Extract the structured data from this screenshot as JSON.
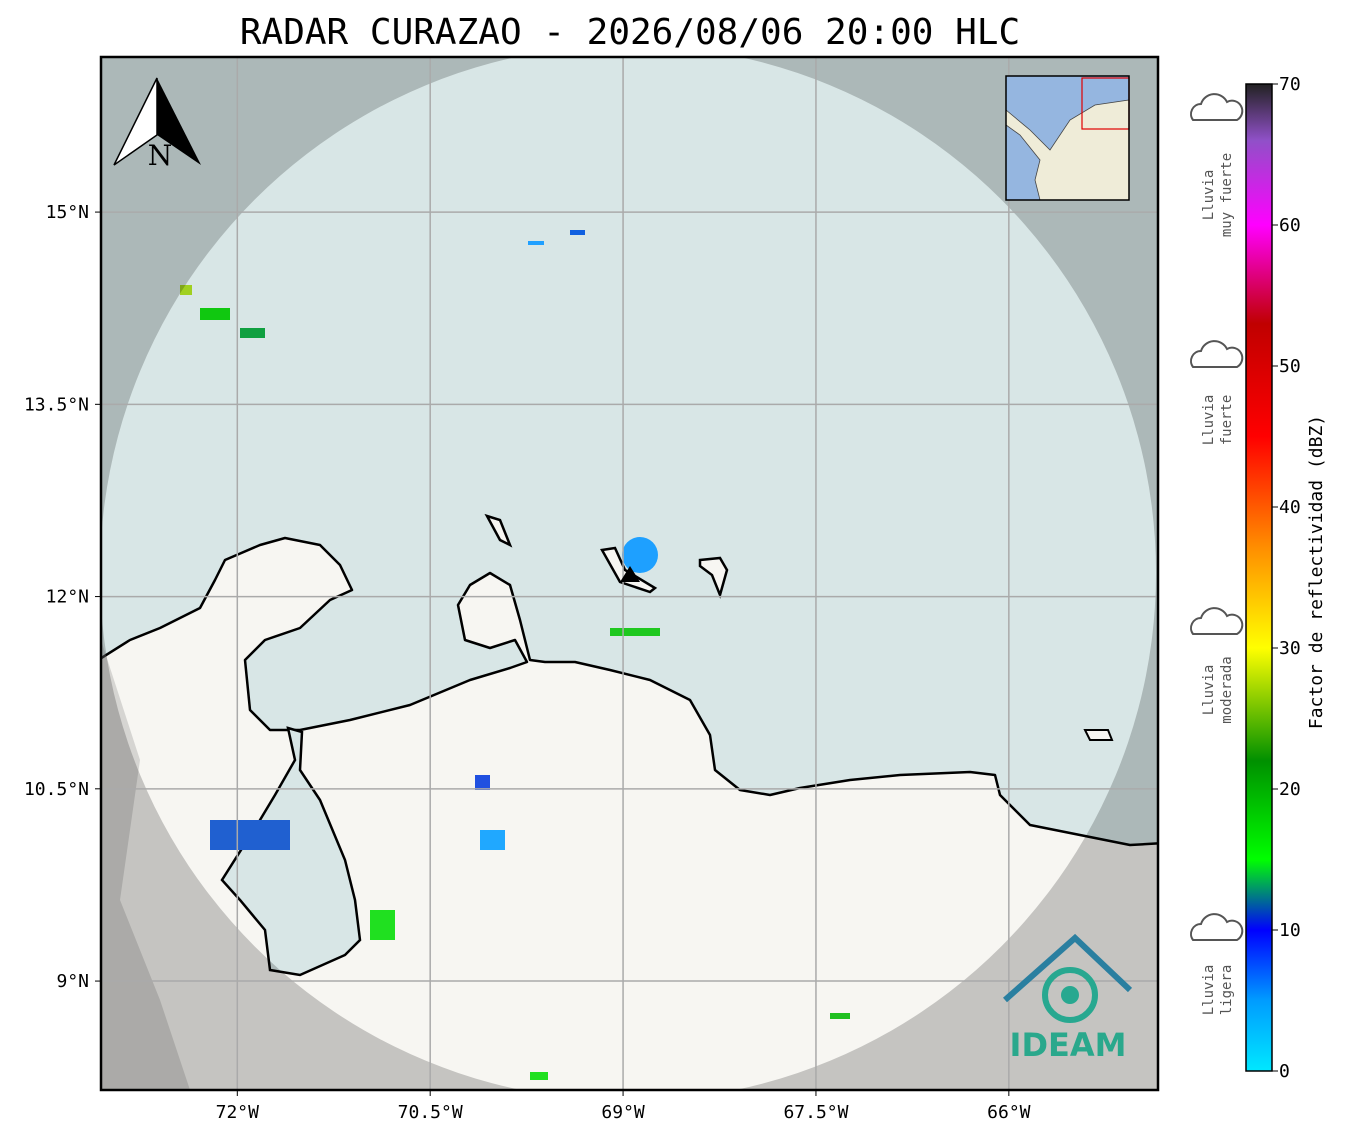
{
  "title": "RADAR CURAZAO - 2026/08/06 20:00 HLC",
  "map": {
    "lonlim": [
      -73.06,
      -64.84
    ],
    "latlim": [
      8.15,
      16.21
    ],
    "lonticks": [
      {
        "value": -72,
        "label": "72°W"
      },
      {
        "value": -70.5,
        "label": "70.5°W"
      },
      {
        "value": -69,
        "label": "69°W"
      },
      {
        "value": -67.5,
        "label": "67.5°W"
      },
      {
        "value": -66,
        "label": "66°W"
      }
    ],
    "latticks": [
      {
        "value": 15,
        "label": "15°N"
      },
      {
        "value": 13.5,
        "label": "13.5°N"
      },
      {
        "value": 12,
        "label": "12°N"
      },
      {
        "value": 10.5,
        "label": "10.5°N"
      },
      {
        "value": 9,
        "label": "9°N"
      }
    ],
    "grid": true,
    "north_label": "N",
    "logo": "IDEAM"
  },
  "colorbar": {
    "label": "Factor de reflectividad (dBZ)",
    "lim": [
      0,
      70
    ],
    "ticks": [
      0,
      10,
      20,
      30,
      40,
      50,
      60,
      70
    ],
    "stops": [
      {
        "value": 0,
        "color": "#00e8ff"
      },
      {
        "value": 5,
        "color": "#009cff"
      },
      {
        "value": 10,
        "color": "#0000ff"
      },
      {
        "value": 15,
        "color": "#00ff00"
      },
      {
        "value": 22,
        "color": "#009000"
      },
      {
        "value": 30,
        "color": "#ffff00"
      },
      {
        "value": 37,
        "color": "#ff9000"
      },
      {
        "value": 45,
        "color": "#ff0000"
      },
      {
        "value": 53,
        "color": "#c00000"
      },
      {
        "value": 60,
        "color": "#ff00ff"
      },
      {
        "value": 66,
        "color": "#9050c8"
      },
      {
        "value": 70,
        "color": "#222222"
      }
    ]
  },
  "legend": [
    {
      "lines": [
        "Lluvia",
        "muy fuerte"
      ]
    },
    {
      "lines": [
        "Lluvia",
        "fuerte"
      ]
    },
    {
      "lines": [
        "Lluvia",
        "moderada"
      ]
    },
    {
      "lines": [
        "Lluvia",
        "ligera"
      ]
    }
  ]
}
